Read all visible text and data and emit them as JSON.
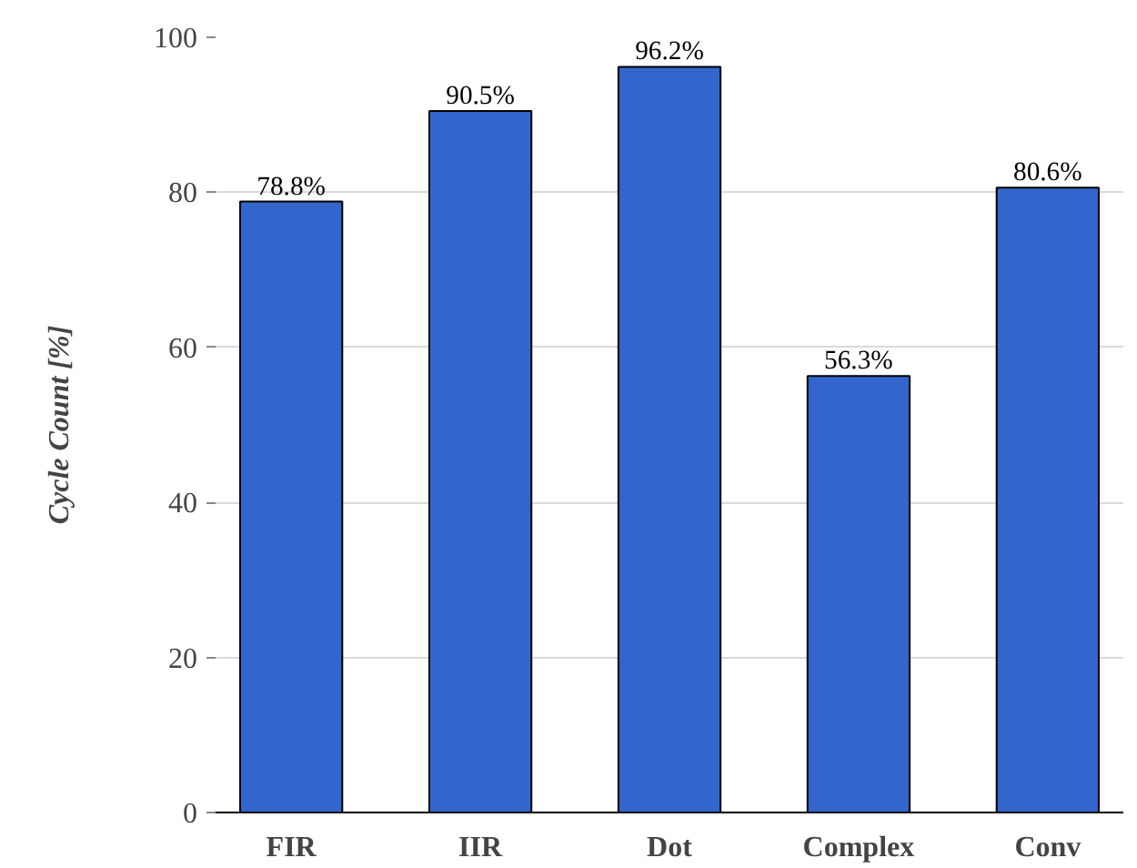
{
  "chart_data": {
    "type": "bar",
    "ylabel": "Cycle Count [%]",
    "categories": [
      "FIR",
      "IIR",
      "Dot",
      "Complex",
      "Conv"
    ],
    "values": [
      78.8,
      90.5,
      96.2,
      56.3,
      80.6
    ],
    "value_labels": [
      "78.8%",
      "90.5%",
      "96.2%",
      "56.3%",
      "80.6%"
    ],
    "color": "#3366cc",
    "ylim": [
      0,
      100
    ],
    "yticks": [
      0,
      20,
      40,
      60,
      80,
      100
    ],
    "grid": "y"
  }
}
